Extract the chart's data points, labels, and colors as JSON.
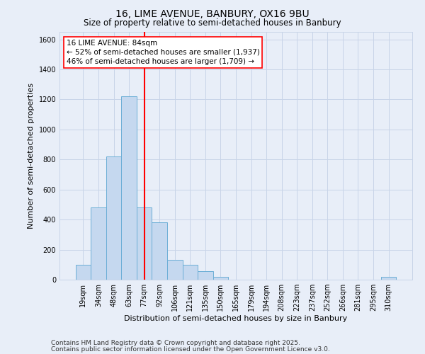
{
  "title": "16, LIME AVENUE, BANBURY, OX16 9BU",
  "subtitle": "Size of property relative to semi-detached houses in Banbury",
  "xlabel": "Distribution of semi-detached houses by size in Banbury",
  "ylabel": "Number of semi-detached properties",
  "categories": [
    "19sqm",
    "34sqm",
    "48sqm",
    "63sqm",
    "77sqm",
    "92sqm",
    "106sqm",
    "121sqm",
    "135sqm",
    "150sqm",
    "165sqm",
    "179sqm",
    "194sqm",
    "208sqm",
    "223sqm",
    "237sqm",
    "252sqm",
    "266sqm",
    "281sqm",
    "295sqm",
    "310sqm"
  ],
  "values": [
    100,
    480,
    820,
    1220,
    480,
    380,
    130,
    100,
    55,
    20,
    0,
    0,
    0,
    0,
    0,
    0,
    0,
    0,
    0,
    0,
    20
  ],
  "bar_color": "#c5d8ef",
  "bar_edge_color": "#6baed6",
  "grid_color": "#c8d4e8",
  "bg_color": "#e8eef8",
  "red_line_label": "16 LIME AVENUE: 84sqm",
  "annotation_smaller": "← 52% of semi-detached houses are smaller (1,937)",
  "annotation_larger": "46% of semi-detached houses are larger (1,709) →",
  "footnote1": "Contains HM Land Registry data © Crown copyright and database right 2025.",
  "footnote2": "Contains public sector information licensed under the Open Government Licence v3.0.",
  "ylim": [
    0,
    1650
  ],
  "yticks": [
    0,
    200,
    400,
    600,
    800,
    1000,
    1200,
    1400,
    1600
  ],
  "title_fontsize": 10,
  "subtitle_fontsize": 8.5,
  "axis_label_fontsize": 8,
  "tick_fontsize": 7,
  "annotation_fontsize": 7.5,
  "footnote_fontsize": 6.5
}
